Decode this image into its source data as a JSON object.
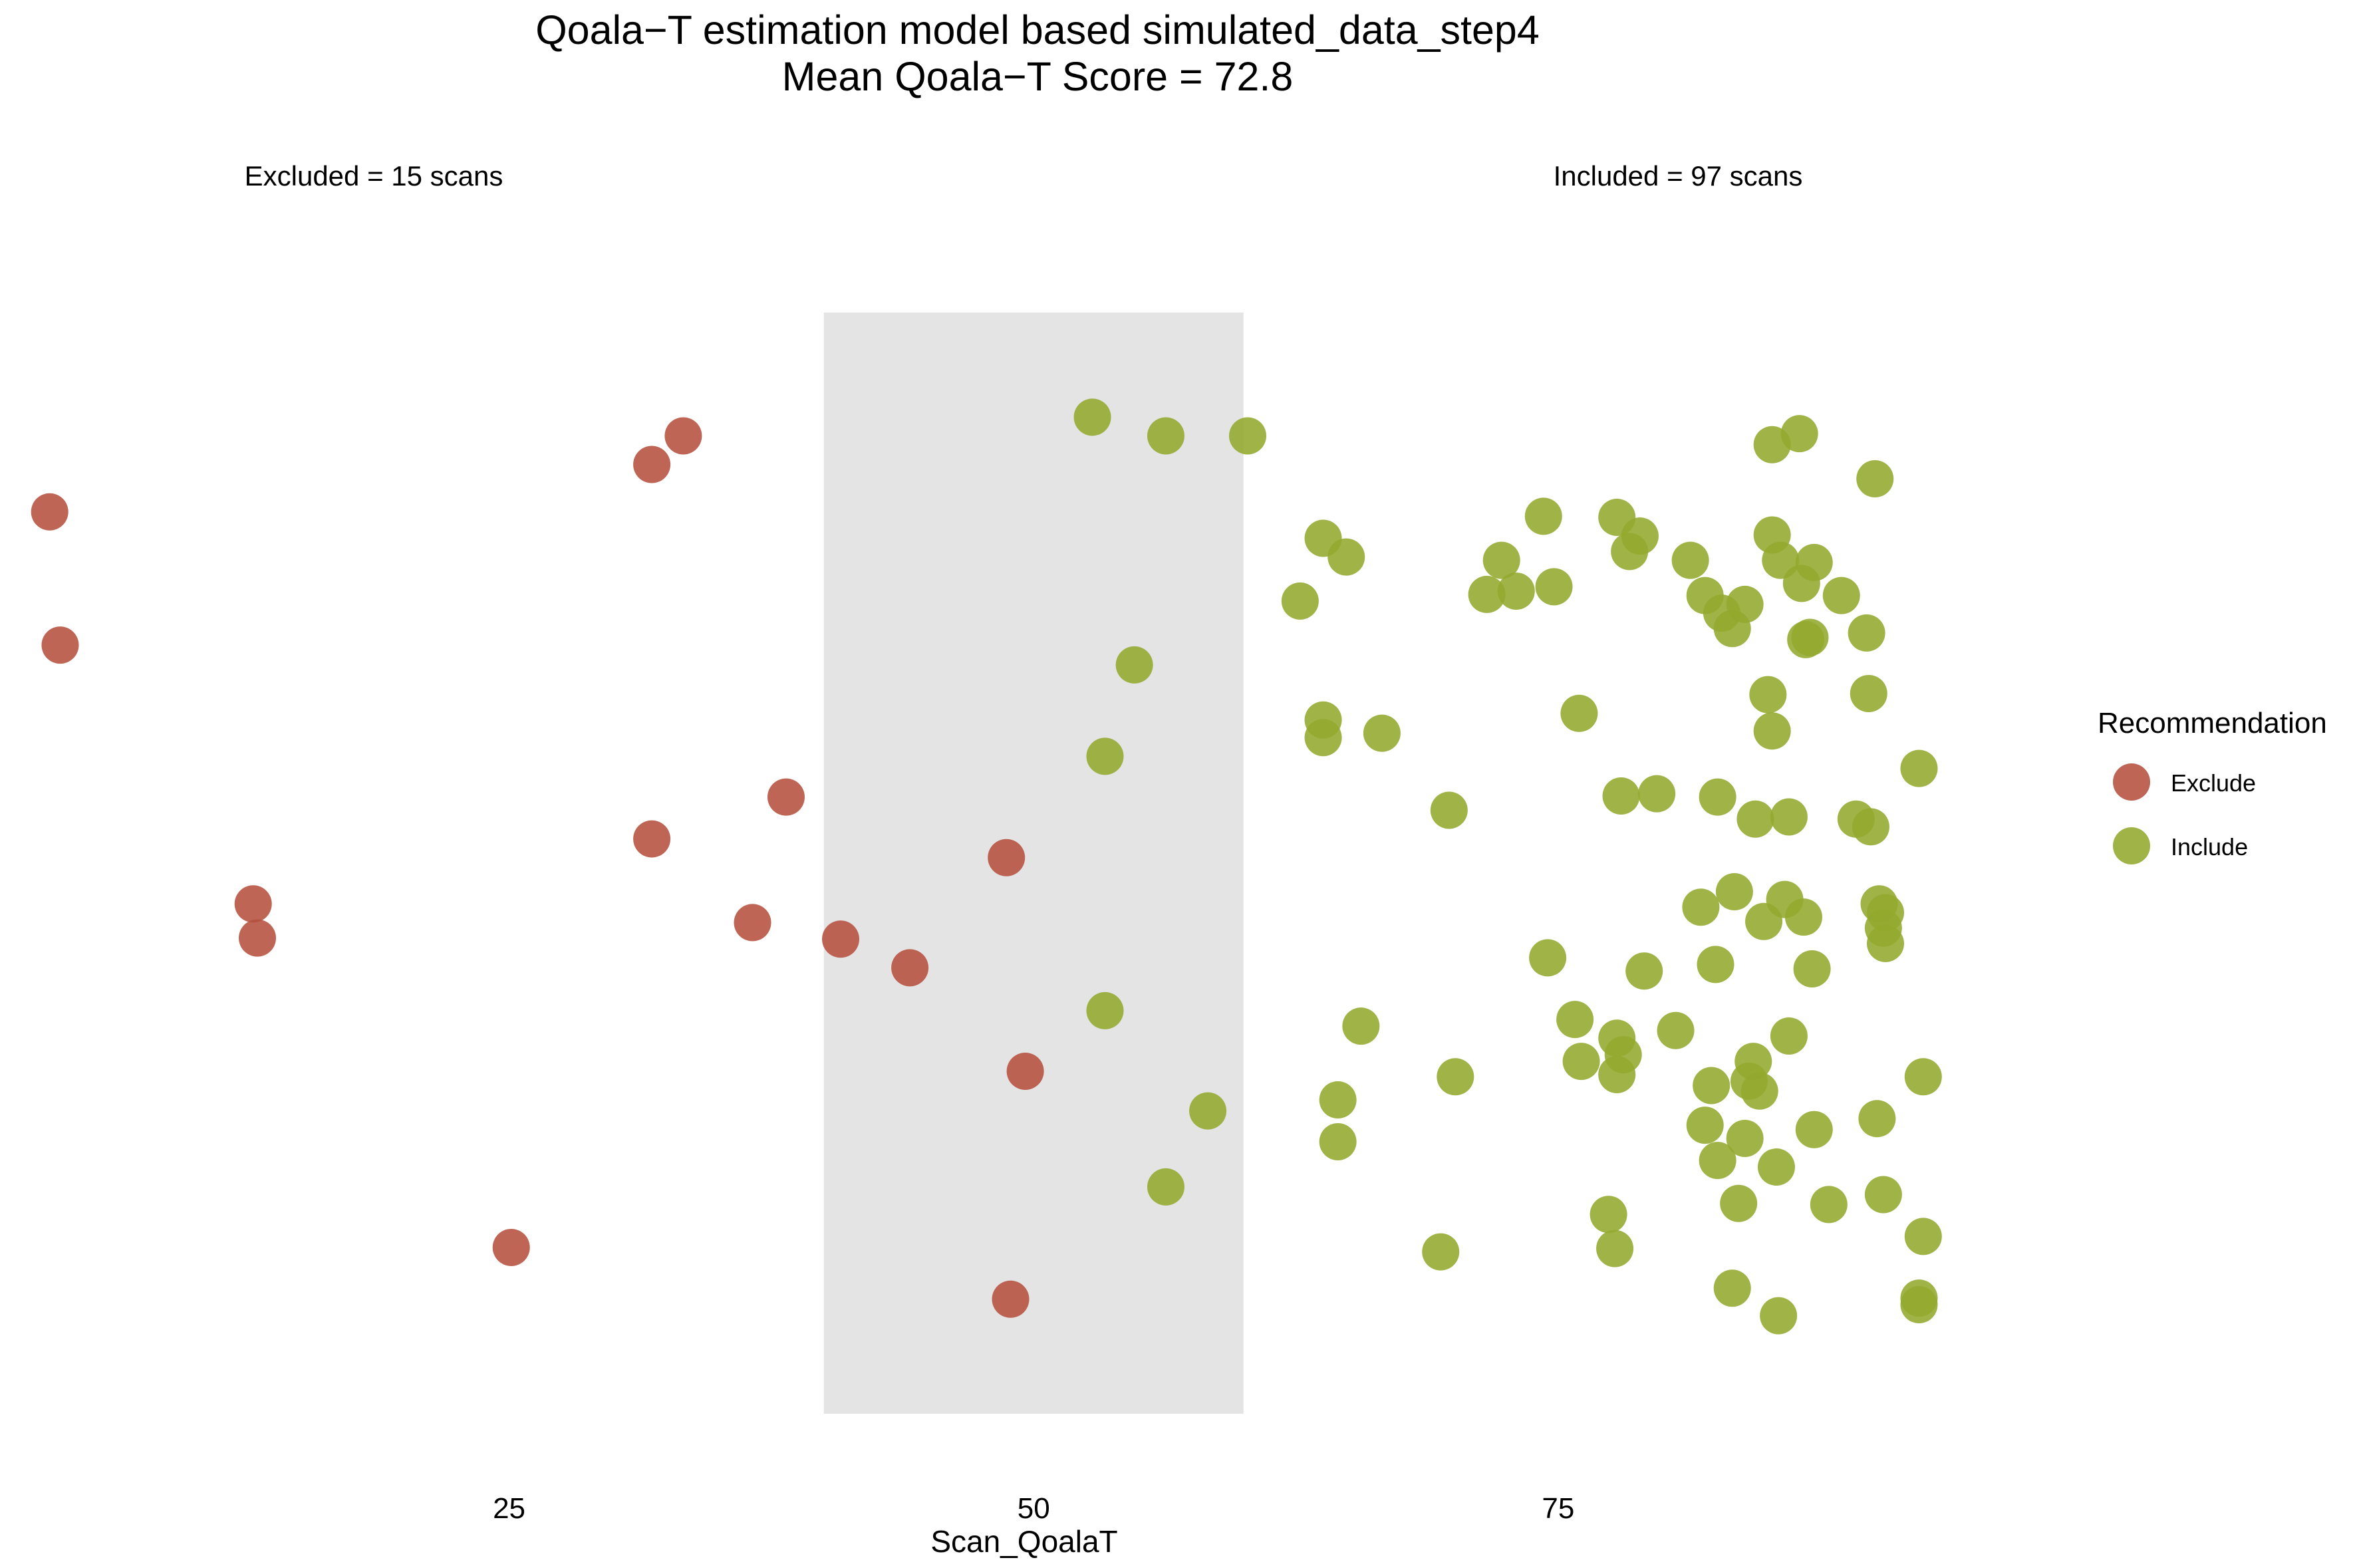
{
  "chart_data": {
    "type": "scatter",
    "title": "Qoala−T estimation model based simulated_data_step4",
    "subtitle": "Mean Qoala−T Score = 72.8",
    "xlabel": "Scan_QoalaT",
    "ylabel": "",
    "xlim": [
      2,
      99
    ],
    "x_ticks": [
      "25",
      "50",
      "75"
    ],
    "x_tick_values": [
      25,
      50,
      75
    ],
    "grid": false,
    "shaded_band": [
      40,
      60
    ],
    "annotations": [
      {
        "text": "Excluded = 15 scans",
        "x": 15,
        "y": 1.01
      },
      {
        "text": "Included = 97 scans",
        "x": 80,
        "y": 1.01
      }
    ],
    "legend": {
      "title": "Recommendation",
      "position": "right",
      "entries": [
        "Exclude",
        "Include"
      ]
    },
    "colors": {
      "Exclude": "#B5503E",
      "Include": "#93A82E",
      "band": "#E4E4E4"
    },
    "series": [
      {
        "name": "Exclude",
        "points": [
          [
            3.1,
            0.819
          ],
          [
            3.6,
            0.698
          ],
          [
            31.8,
            0.862
          ],
          [
            33.3,
            0.888
          ],
          [
            12.8,
            0.463
          ],
          [
            13.0,
            0.432
          ],
          [
            25.1,
            0.151
          ],
          [
            31.8,
            0.522
          ],
          [
            36.6,
            0.446
          ],
          [
            38.2,
            0.56
          ],
          [
            40.8,
            0.431
          ],
          [
            44.1,
            0.405
          ],
          [
            48.7,
            0.505
          ],
          [
            49.6,
            0.311
          ],
          [
            48.9,
            0.104
          ]
        ]
      },
      {
        "name": "Include",
        "points": [
          [
            52.8,
            0.905
          ],
          [
            56.3,
            0.888
          ],
          [
            60.2,
            0.888
          ],
          [
            54.8,
            0.68
          ],
          [
            53.4,
            0.597
          ],
          [
            53.4,
            0.366
          ],
          [
            58.3,
            0.275
          ],
          [
            56.3,
            0.206
          ],
          [
            62.7,
            0.738
          ],
          [
            63.8,
            0.795
          ],
          [
            64.9,
            0.778
          ],
          [
            63.8,
            0.63
          ],
          [
            63.8,
            0.614
          ],
          [
            66.6,
            0.618
          ],
          [
            65.6,
            0.352
          ],
          [
            64.5,
            0.285
          ],
          [
            64.5,
            0.247
          ],
          [
            69.8,
            0.548
          ],
          [
            70.1,
            0.306
          ],
          [
            69.4,
            0.147
          ],
          [
            71.6,
            0.744
          ],
          [
            72.3,
            0.775
          ],
          [
            73.0,
            0.747
          ],
          [
            74.3,
            0.815
          ],
          [
            74.8,
            0.751
          ],
          [
            74.5,
            0.414
          ],
          [
            75.8,
            0.358
          ],
          [
            76.1,
            0.32
          ],
          [
            76.0,
            0.636
          ],
          [
            77.8,
            0.814
          ],
          [
            78.0,
            0.561
          ],
          [
            78.4,
            0.783
          ],
          [
            78.9,
            0.797
          ],
          [
            79.1,
            0.402
          ],
          [
            77.8,
            0.341
          ],
          [
            78.1,
            0.326
          ],
          [
            77.8,
            0.308
          ],
          [
            77.4,
            0.181
          ],
          [
            77.7,
            0.15
          ],
          [
            79.7,
            0.563
          ],
          [
            80.6,
            0.348
          ],
          [
            81.3,
            0.775
          ],
          [
            82.0,
            0.743
          ],
          [
            82.8,
            0.727
          ],
          [
            82.0,
            0.262
          ],
          [
            81.8,
            0.46
          ],
          [
            82.3,
            0.298
          ],
          [
            82.6,
            0.23
          ],
          [
            82.6,
            0.56
          ],
          [
            82.5,
            0.408
          ],
          [
            83.3,
            0.713
          ],
          [
            83.4,
            0.474
          ],
          [
            83.9,
            0.735
          ],
          [
            84.4,
            0.54
          ],
          [
            84.3,
            0.32
          ],
          [
            84.1,
            0.302
          ],
          [
            83.9,
            0.25
          ],
          [
            83.6,
            0.191
          ],
          [
            83.3,
            0.114
          ],
          [
            84.8,
            0.447
          ],
          [
            84.6,
            0.293
          ],
          [
            85.2,
            0.88
          ],
          [
            85.2,
            0.798
          ],
          [
            85.6,
            0.775
          ],
          [
            85.2,
            0.62
          ],
          [
            85.0,
            0.653
          ],
          [
            85.4,
            0.224
          ],
          [
            85.5,
            0.089
          ],
          [
            86.0,
            0.542
          ],
          [
            85.8,
            0.467
          ],
          [
            86.0,
            0.343
          ],
          [
            86.5,
            0.89
          ],
          [
            86.6,
            0.754
          ],
          [
            86.8,
            0.703
          ],
          [
            87.0,
            0.705
          ],
          [
            87.2,
            0.773
          ],
          [
            86.7,
            0.451
          ],
          [
            87.1,
            0.404
          ],
          [
            87.2,
            0.258
          ],
          [
            87.9,
            0.19
          ],
          [
            89.7,
            0.709
          ],
          [
            88.5,
            0.743
          ],
          [
            89.2,
            0.54
          ],
          [
            89.9,
            0.533
          ],
          [
            89.8,
            0.654
          ],
          [
            90.1,
            0.849
          ],
          [
            90.3,
            0.463
          ],
          [
            90.5,
            0.441
          ],
          [
            90.6,
            0.427
          ],
          [
            90.2,
            0.268
          ],
          [
            90.5,
            0.199
          ],
          [
            92.2,
            0.586
          ],
          [
            92.4,
            0.306
          ],
          [
            92.4,
            0.161
          ],
          [
            92.2,
            0.105
          ],
          [
            92.2,
            0.099
          ],
          [
            90.6,
            0.455
          ]
        ]
      }
    ]
  }
}
